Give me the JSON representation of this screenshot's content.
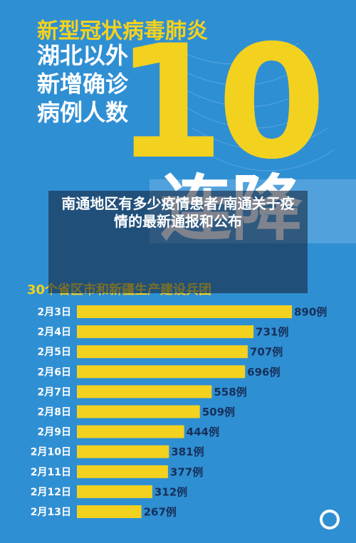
{
  "header": {
    "title": "新型冠状病毒肺炎",
    "lines": [
      "湖北以外",
      "新增确诊",
      "病例人数"
    ],
    "number": "10",
    "headline": "连降"
  },
  "caption": "南通地区有多少疫情患者/南通关于疫情的最新通报和公布",
  "chart_data": {
    "type": "bar",
    "orientation": "horizontal",
    "subtitle": "30个省区市和新疆生产建设兵团",
    "categories": [
      "2月3日",
      "2月4日",
      "2月5日",
      "2月6日",
      "2月7日",
      "2月8日",
      "2月9日",
      "2月10日",
      "2月11日",
      "2月12日",
      "2月13日"
    ],
    "values": [
      890,
      731,
      707,
      696,
      558,
      509,
      444,
      381,
      377,
      312,
      267
    ],
    "value_labels": [
      "890例",
      "731例",
      "707例",
      "696例",
      "558例",
      "509例",
      "444例",
      "381例",
      "377例",
      "312例",
      "267例"
    ],
    "color": "#f3d11f"
  }
}
